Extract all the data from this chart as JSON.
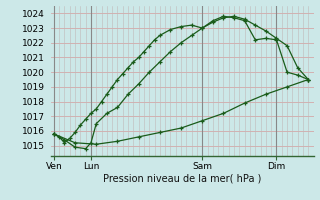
{
  "xlabel": "Pression niveau de la mer( hPa )",
  "bg_color": "#cce8e8",
  "grid_color_h": "#d4a8a8",
  "grid_color_v": "#c0b8b8",
  "line_color": "#1a5c1a",
  "ylim": [
    1014.3,
    1024.5
  ],
  "yticks": [
    1015,
    1016,
    1017,
    1018,
    1019,
    1020,
    1021,
    1022,
    1023,
    1024
  ],
  "xlim": [
    -0.5,
    49
  ],
  "x_tick_positions": [
    0,
    7,
    28,
    42
  ],
  "x_tick_labels": [
    "Ven",
    "Lun",
    "Sam",
    "Dim"
  ],
  "x_vlines": [
    0,
    7,
    28,
    42
  ],
  "line1_x": [
    0,
    1,
    2,
    3,
    4,
    5,
    6,
    7,
    8,
    9,
    10,
    11,
    12,
    13,
    14,
    15,
    16,
    17,
    18,
    19,
    20,
    22,
    24,
    26,
    28,
    30,
    32,
    34,
    36,
    38,
    40,
    42,
    44,
    46,
    48
  ],
  "line1_y": [
    1015.8,
    1015.6,
    1015.2,
    1015.5,
    1015.9,
    1016.4,
    1016.8,
    1017.2,
    1017.5,
    1018.0,
    1018.5,
    1019.0,
    1019.5,
    1019.9,
    1020.3,
    1020.7,
    1021.0,
    1021.4,
    1021.8,
    1022.2,
    1022.5,
    1022.9,
    1023.1,
    1023.2,
    1023.0,
    1023.4,
    1023.7,
    1023.8,
    1023.6,
    1023.2,
    1022.8,
    1022.3,
    1021.8,
    1020.3,
    1019.5
  ],
  "line2_x": [
    0,
    2,
    4,
    6,
    7,
    8,
    10,
    12,
    14,
    16,
    18,
    20,
    22,
    24,
    26,
    28,
    30,
    32,
    34,
    36,
    38,
    40,
    42,
    44,
    46,
    48
  ],
  "line2_y": [
    1015.8,
    1015.4,
    1014.9,
    1014.8,
    1015.2,
    1016.5,
    1017.2,
    1017.6,
    1018.5,
    1019.2,
    1020.0,
    1020.7,
    1021.4,
    1022.0,
    1022.5,
    1023.0,
    1023.5,
    1023.8,
    1023.7,
    1023.5,
    1022.2,
    1022.3,
    1022.2,
    1020.0,
    1019.8,
    1019.5
  ],
  "line3_x": [
    0,
    4,
    8,
    12,
    16,
    20,
    24,
    28,
    32,
    36,
    40,
    44,
    48
  ],
  "line3_y": [
    1015.8,
    1015.2,
    1015.1,
    1015.3,
    1015.6,
    1015.9,
    1016.2,
    1016.7,
    1017.2,
    1017.9,
    1018.5,
    1019.0,
    1019.5
  ]
}
